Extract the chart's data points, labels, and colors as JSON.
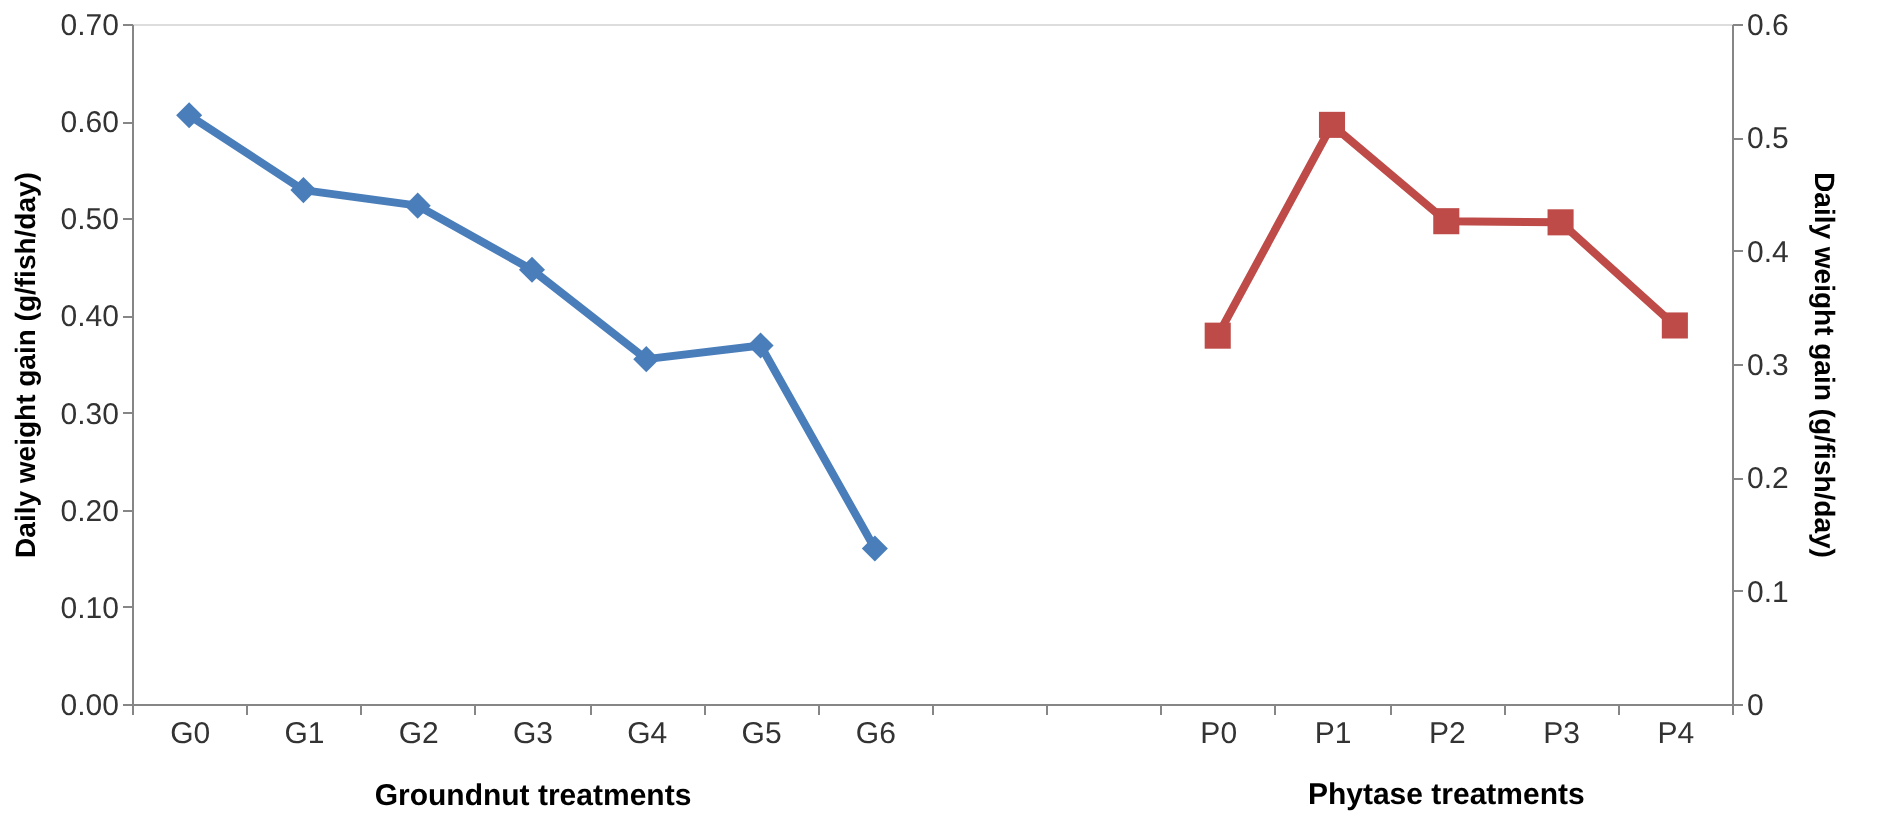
{
  "chart_data": {
    "type": "line",
    "categories": [
      "G0",
      "G1",
      "G2",
      "G3",
      "G4",
      "G5",
      "G6",
      null,
      null,
      "P0",
      "P1",
      "P2",
      "P3",
      "P4"
    ],
    "series": [
      {
        "color": "#4a7ebb",
        "marker": "diamond",
        "axis": "y",
        "values": [
          0.606,
          0.529,
          0.513,
          0.447,
          0.355,
          0.369,
          0.16,
          null,
          null,
          null,
          null,
          null,
          null,
          null
        ]
      },
      {
        "color": "#be4b48",
        "marker": "square",
        "axis": "y2",
        "values": [
          null,
          null,
          null,
          null,
          null,
          null,
          null,
          null,
          null,
          0.325,
          0.511,
          0.426,
          0.425,
          0.334
        ]
      }
    ],
    "xlabel": "Groundnut treatments",
    "annotations": [
      "Phytase treatments"
    ],
    "ylabel": "Daily weight gain (g/fish/day)",
    "y2label": "Daily weight gain (g/fish/day)",
    "ylim": [
      0,
      0.7
    ],
    "yticks": [
      {
        "value": 0,
        "label": "0.00"
      },
      {
        "value": 0.1,
        "label": "0.10"
      },
      {
        "value": 0.2,
        "label": "0.20"
      },
      {
        "value": 0.3,
        "label": "0.30"
      },
      {
        "value": 0.4,
        "label": "0.40"
      },
      {
        "value": 0.5,
        "label": "0.50"
      },
      {
        "value": 0.6,
        "label": "0.60"
      },
      {
        "value": 0.7,
        "label": "0.70"
      }
    ],
    "y2lim": [
      0,
      0.6
    ],
    "y2ticks": [
      0,
      0.1,
      0.2,
      0.3,
      0.4,
      0.5,
      0.6
    ],
    "grid": false,
    "line_style": "solid"
  }
}
